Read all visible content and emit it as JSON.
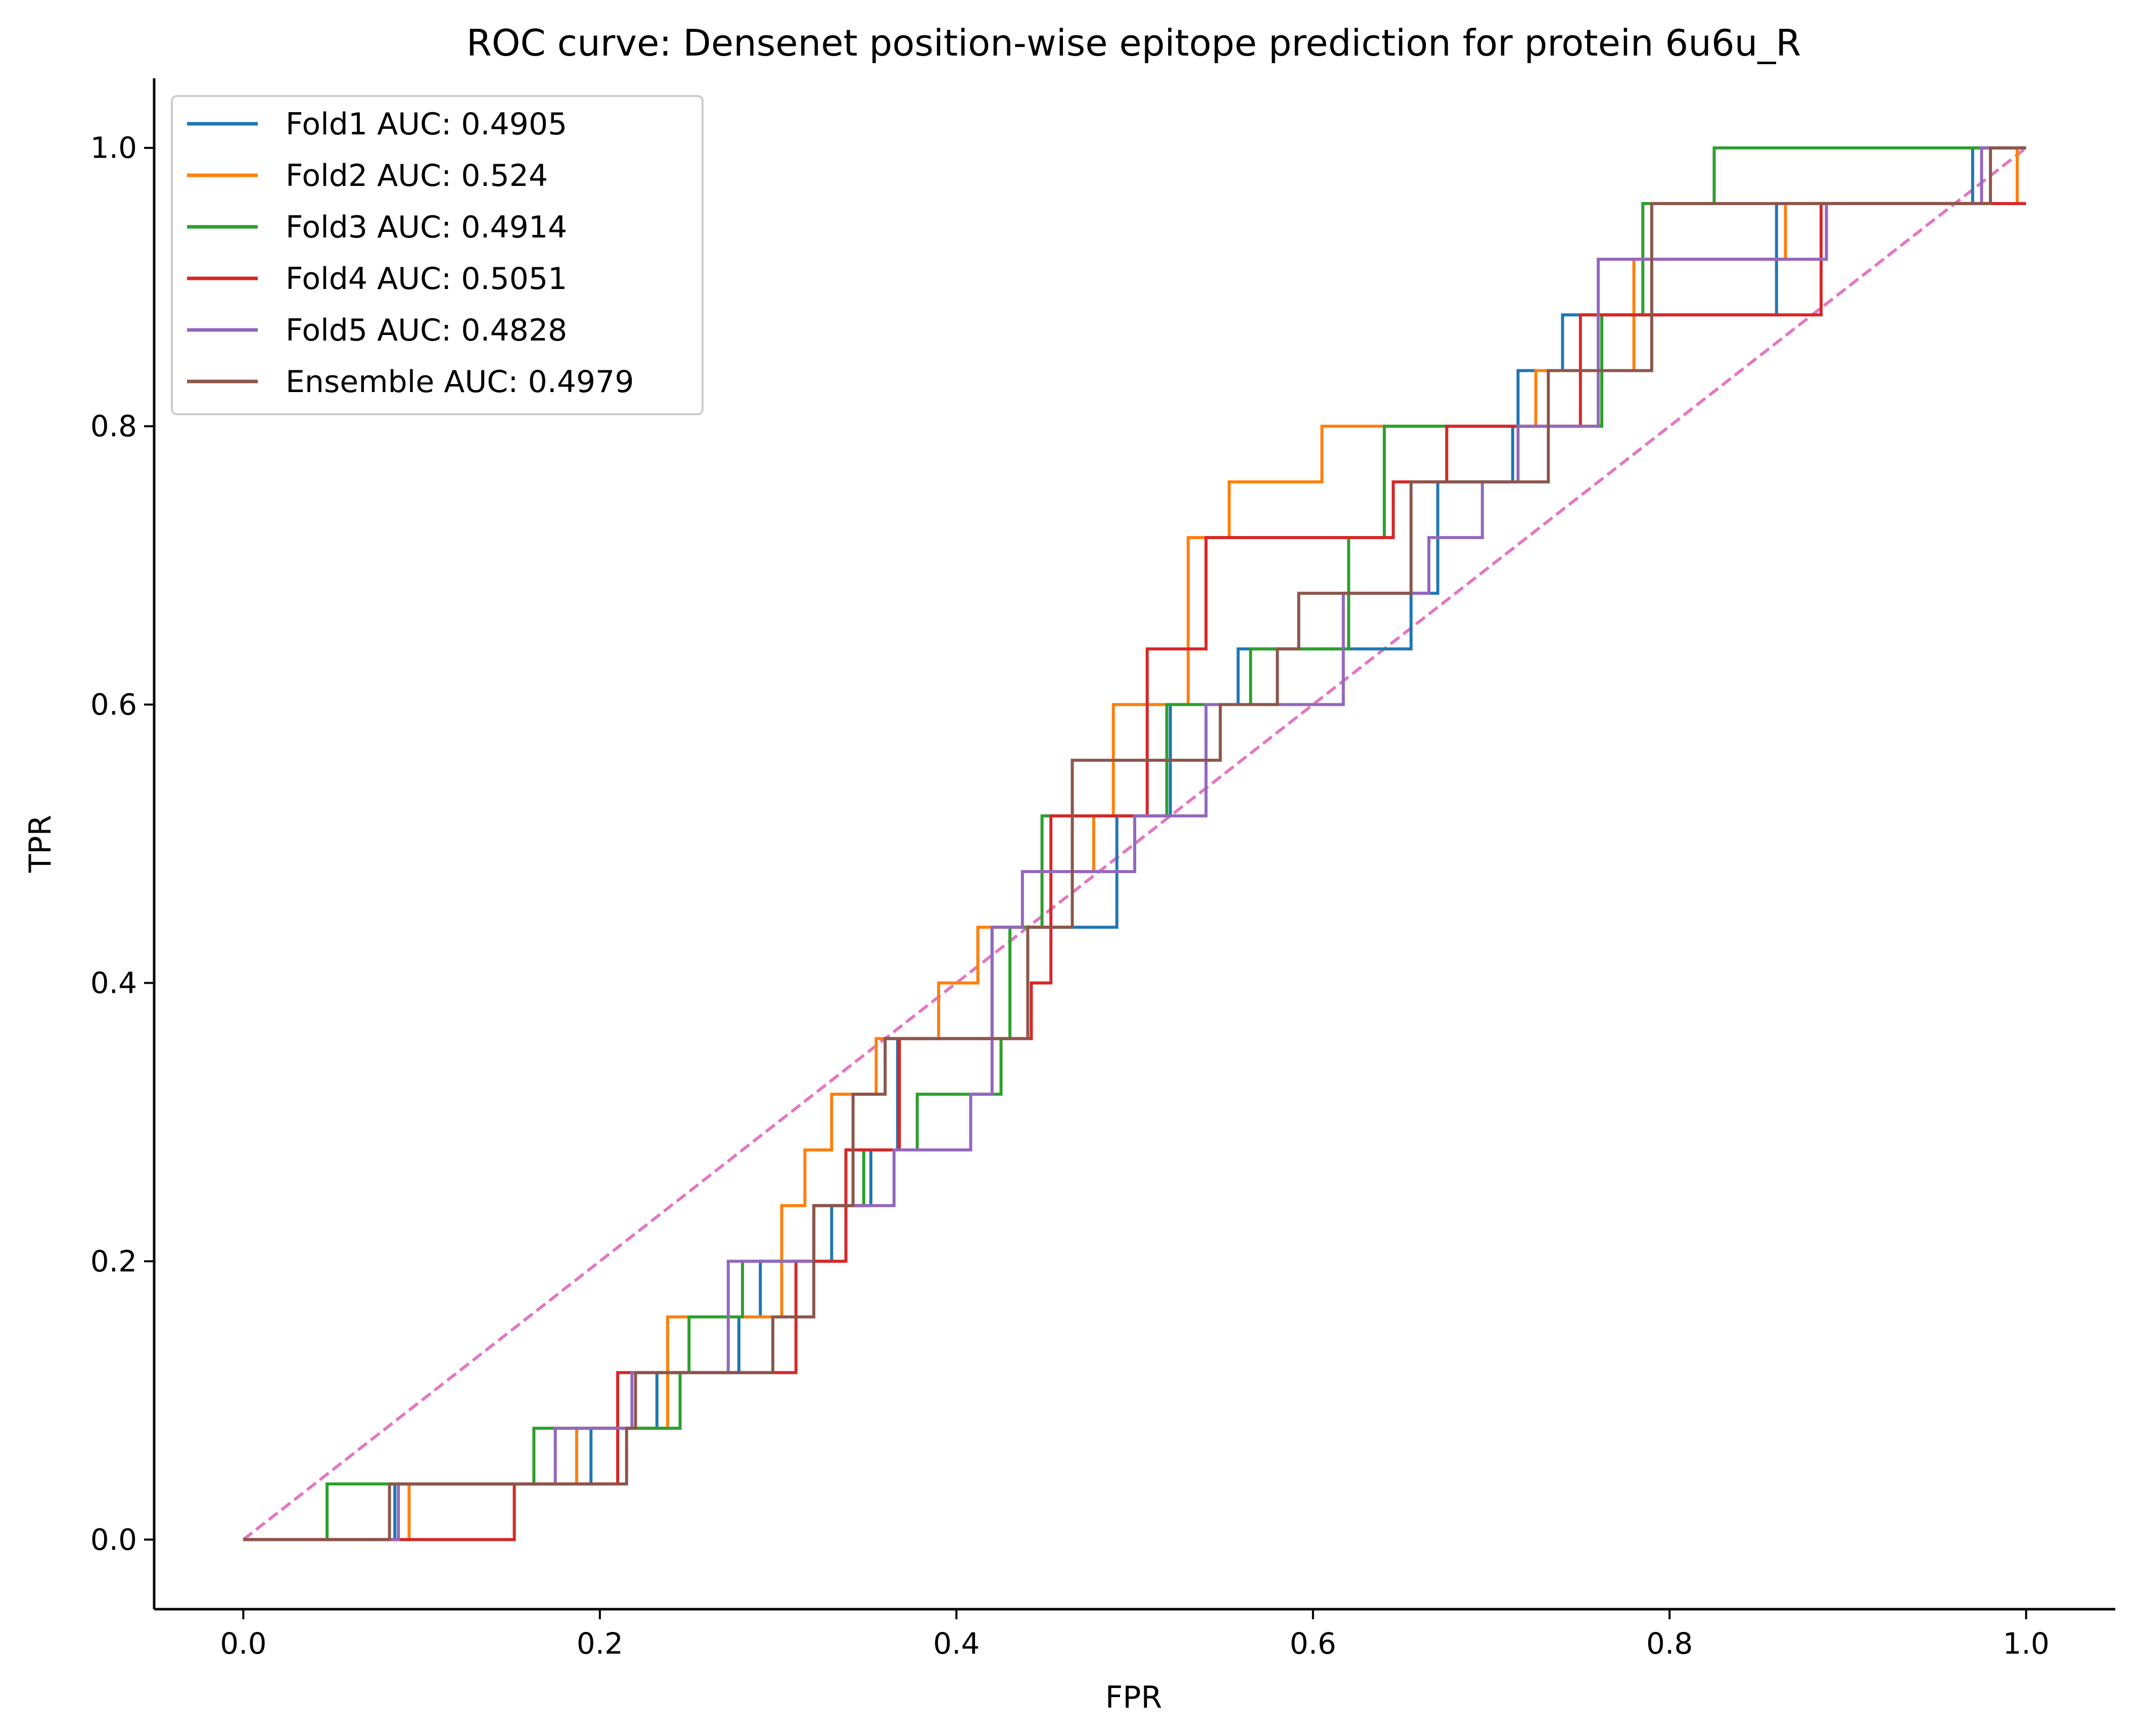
{
  "chart_data": {
    "type": "line",
    "title": "ROC curve: Densenet position-wise epitope prediction for protein 6u6u_R",
    "xlabel": "FPR",
    "ylabel": "TPR",
    "xlim": [
      -0.05,
      1.05
    ],
    "ylim": [
      -0.05,
      1.05
    ],
    "xticks": [
      0.0,
      0.2,
      0.4,
      0.6,
      0.8,
      1.0
    ],
    "yticks": [
      0.0,
      0.2,
      0.4,
      0.6,
      0.8,
      1.0
    ],
    "xtick_labels": [
      "0.0",
      "0.2",
      "0.4",
      "0.6",
      "0.8",
      "1.0"
    ],
    "ytick_labels": [
      "0.0",
      "0.2",
      "0.4",
      "0.6",
      "0.8",
      "1.0"
    ],
    "grid": false,
    "legend_position": "top-left",
    "series": [
      {
        "name": "Fold1 AUC: 0.4905",
        "color": "#1f77b4",
        "style": "solid",
        "x": [
          0,
          0.085,
          0.085,
          0.195,
          0.195,
          0.232,
          0.232,
          0.278,
          0.278,
          0.29,
          0.29,
          0.33,
          0.33,
          0.352,
          0.352,
          0.367,
          0.367,
          0.42,
          0.42,
          0.49,
          0.49,
          0.52,
          0.52,
          0.558,
          0.558,
          0.655,
          0.655,
          0.67,
          0.67,
          0.712,
          0.712,
          0.715,
          0.715,
          0.74,
          0.74,
          0.86,
          0.86,
          0.97,
          0.97,
          1.0
        ],
        "y": [
          0,
          0,
          0.04,
          0.04,
          0.08,
          0.08,
          0.12,
          0.12,
          0.16,
          0.16,
          0.2,
          0.2,
          0.24,
          0.24,
          0.28,
          0.28,
          0.36,
          0.36,
          0.44,
          0.44,
          0.52,
          0.52,
          0.6,
          0.6,
          0.64,
          0.64,
          0.68,
          0.68,
          0.76,
          0.76,
          0.8,
          0.8,
          0.84,
          0.84,
          0.88,
          0.88,
          0.96,
          0.96,
          1.0,
          1.0
        ]
      },
      {
        "name": "Fold2 AUC: 0.524",
        "color": "#ff7f0e",
        "style": "solid",
        "x": [
          0,
          0.093,
          0.093,
          0.187,
          0.187,
          0.238,
          0.238,
          0.302,
          0.302,
          0.315,
          0.315,
          0.33,
          0.33,
          0.355,
          0.355,
          0.39,
          0.39,
          0.412,
          0.412,
          0.465,
          0.465,
          0.477,
          0.477,
          0.488,
          0.488,
          0.53,
          0.53,
          0.553,
          0.553,
          0.605,
          0.605,
          0.725,
          0.725,
          0.78,
          0.78,
          0.865,
          0.865,
          0.995,
          0.995,
          1.0
        ],
        "y": [
          0,
          0,
          0.04,
          0.04,
          0.08,
          0.08,
          0.16,
          0.16,
          0.24,
          0.24,
          0.28,
          0.28,
          0.32,
          0.32,
          0.36,
          0.36,
          0.4,
          0.4,
          0.44,
          0.44,
          0.48,
          0.48,
          0.52,
          0.52,
          0.6,
          0.6,
          0.72,
          0.72,
          0.76,
          0.76,
          0.8,
          0.8,
          0.84,
          0.84,
          0.92,
          0.92,
          0.96,
          0.96,
          1.0,
          1.0
        ]
      },
      {
        "name": "Fold3 AUC: 0.4914",
        "color": "#2ca02c",
        "style": "solid",
        "x": [
          0,
          0.047,
          0.047,
          0.163,
          0.163,
          0.245,
          0.245,
          0.25,
          0.25,
          0.28,
          0.28,
          0.32,
          0.32,
          0.348,
          0.348,
          0.378,
          0.378,
          0.425,
          0.425,
          0.43,
          0.43,
          0.448,
          0.448,
          0.518,
          0.518,
          0.565,
          0.565,
          0.62,
          0.62,
          0.64,
          0.64,
          0.762,
          0.762,
          0.785,
          0.785,
          0.825,
          0.825,
          0.985,
          0.985,
          1.0
        ],
        "y": [
          0,
          0,
          0.04,
          0.04,
          0.08,
          0.08,
          0.12,
          0.12,
          0.16,
          0.16,
          0.2,
          0.2,
          0.24,
          0.24,
          0.28,
          0.28,
          0.32,
          0.32,
          0.36,
          0.36,
          0.44,
          0.44,
          0.52,
          0.52,
          0.6,
          0.6,
          0.64,
          0.64,
          0.72,
          0.72,
          0.8,
          0.8,
          0.88,
          0.88,
          0.96,
          0.96,
          1.0,
          1.0,
          1.0,
          1.0
        ]
      },
      {
        "name": "Fold4 AUC: 0.5051",
        "color": "#d62728",
        "style": "solid",
        "x": [
          0,
          0.152,
          0.152,
          0.21,
          0.21,
          0.31,
          0.31,
          0.338,
          0.338,
          0.368,
          0.368,
          0.442,
          0.442,
          0.453,
          0.453,
          0.507,
          0.507,
          0.54,
          0.54,
          0.645,
          0.645,
          0.675,
          0.675,
          0.75,
          0.75,
          0.885,
          0.885,
          1.0
        ],
        "y": [
          0,
          0,
          0.04,
          0.04,
          0.12,
          0.12,
          0.2,
          0.2,
          0.28,
          0.28,
          0.36,
          0.36,
          0.4,
          0.4,
          0.52,
          0.52,
          0.64,
          0.64,
          0.72,
          0.72,
          0.76,
          0.76,
          0.8,
          0.8,
          0.88,
          0.88,
          0.96,
          0.96
        ]
      },
      {
        "name": "Fold5 AUC: 0.4828",
        "color": "#9467bd",
        "style": "solid",
        "x": [
          0,
          0.087,
          0.087,
          0.175,
          0.175,
          0.218,
          0.218,
          0.272,
          0.272,
          0.32,
          0.32,
          0.365,
          0.365,
          0.408,
          0.408,
          0.42,
          0.42,
          0.437,
          0.437,
          0.5,
          0.5,
          0.54,
          0.54,
          0.617,
          0.617,
          0.665,
          0.665,
          0.695,
          0.695,
          0.715,
          0.715,
          0.76,
          0.76,
          0.888,
          0.888,
          0.975,
          0.975,
          1.0
        ],
        "y": [
          0,
          0,
          0.04,
          0.04,
          0.08,
          0.08,
          0.12,
          0.12,
          0.2,
          0.2,
          0.24,
          0.24,
          0.28,
          0.28,
          0.32,
          0.32,
          0.44,
          0.44,
          0.48,
          0.48,
          0.52,
          0.52,
          0.6,
          0.6,
          0.68,
          0.68,
          0.72,
          0.72,
          0.76,
          0.76,
          0.8,
          0.8,
          0.92,
          0.92,
          0.96,
          0.96,
          1.0,
          1.0
        ]
      },
      {
        "name": "Ensemble AUC: 0.4979",
        "color": "#8c564b",
        "style": "solid",
        "x": [
          0,
          0.082,
          0.082,
          0.215,
          0.215,
          0.22,
          0.22,
          0.297,
          0.297,
          0.32,
          0.32,
          0.342,
          0.342,
          0.36,
          0.36,
          0.44,
          0.44,
          0.465,
          0.465,
          0.548,
          0.548,
          0.58,
          0.58,
          0.592,
          0.592,
          0.655,
          0.655,
          0.732,
          0.732,
          0.79,
          0.79,
          0.98,
          0.98,
          1.0
        ],
        "y": [
          0,
          0,
          0.04,
          0.04,
          0.08,
          0.08,
          0.12,
          0.12,
          0.16,
          0.16,
          0.24,
          0.24,
          0.32,
          0.32,
          0.36,
          0.36,
          0.44,
          0.44,
          0.56,
          0.56,
          0.6,
          0.6,
          0.64,
          0.64,
          0.68,
          0.68,
          0.76,
          0.76,
          0.84,
          0.84,
          0.96,
          0.96,
          1.0,
          1.0
        ]
      },
      {
        "color": "#e377c2",
        "style": "dashed",
        "x": [
          0,
          1
        ],
        "y": [
          0,
          1
        ]
      }
    ]
  }
}
